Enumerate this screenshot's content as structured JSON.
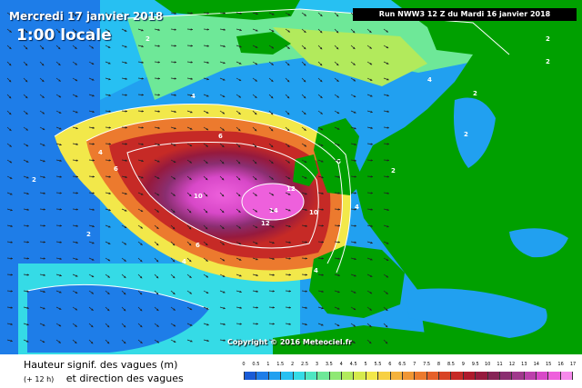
{
  "header": {
    "date_title": "Mercredi 17 janvier 2018",
    "local_time": "1:00 locale",
    "run_info": "Run NWW3 12 Z du Mardi 16 janvier 2018"
  },
  "copyright": "Copyright © 2016 Meteociel.fr",
  "legend": {
    "title": "Hauteur signif. des vagues (m)",
    "subtitle_lead": "(+ 12 h)",
    "subtitle": "et direction des vagues",
    "scale_labels": [
      "0",
      "0.5",
      "1",
      "1.5",
      "2",
      "2.5",
      "3",
      "3.5",
      "4",
      "4.5",
      "5",
      "5.5",
      "6",
      "6.5",
      "7",
      "7.5",
      "8",
      "8.5",
      "9",
      "9.5",
      "10",
      "11",
      "12",
      "13",
      "14",
      "15",
      "16",
      "17"
    ],
    "scale_colors": [
      "#1a5bd6",
      "#1e7de8",
      "#21a0f0",
      "#27c0f2",
      "#35dbe6",
      "#4fe6c2",
      "#6ee898",
      "#8fe874",
      "#b2ea5c",
      "#d6ea4c",
      "#f2e84a",
      "#f7d044",
      "#f4b23c",
      "#f09634",
      "#ec7a2e",
      "#e6602a",
      "#d84426",
      "#c62a26",
      "#ae1a2c",
      "#961a3e",
      "#862456",
      "#8a2e70",
      "#a0388c",
      "#bc40ac",
      "#d848c8",
      "#ee60dc",
      "#f68aec"
    ]
  },
  "map": {
    "contour_labels": [
      "2",
      "2",
      "2",
      "2",
      "4",
      "4",
      "4",
      "4",
      "4",
      "6",
      "6",
      "6",
      "6",
      "10",
      "10",
      "12",
      "12",
      "14",
      "2",
      "2",
      "2",
      "4",
      "2"
    ],
    "land_color": "#00a000",
    "ocean_color": "#21a0f0"
  }
}
